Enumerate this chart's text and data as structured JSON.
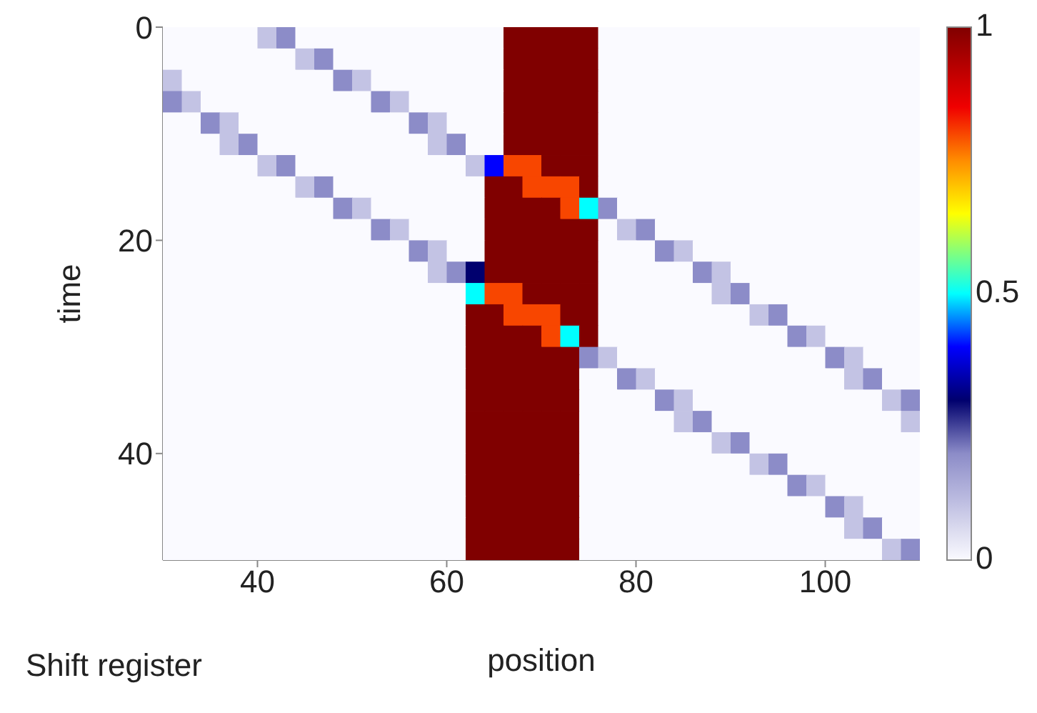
{
  "chart_data": {
    "type": "heatmap",
    "xlabel": "position",
    "ylabel": "time",
    "annotations": [
      "Shift register"
    ],
    "x": [
      31,
      33,
      35,
      37,
      39,
      41,
      43,
      45,
      47,
      49,
      51,
      53,
      55,
      57,
      59,
      61,
      63,
      65,
      67,
      69,
      71,
      73,
      75,
      77,
      79,
      81,
      83,
      85,
      87,
      89,
      91,
      93,
      95,
      97,
      99,
      101,
      103,
      105,
      107,
      109
    ],
    "xlim": [
      30,
      110
    ],
    "xticks": [
      40,
      60,
      80,
      100
    ],
    "ylim": [
      50,
      0
    ],
    "yticks": [
      0,
      20,
      40
    ],
    "clim": [
      0,
      1
    ],
    "cticks": [
      0,
      0.5,
      1
    ],
    "cells": [
      [
        0,
        0,
        0,
        0,
        0,
        0.1,
        0.2,
        0,
        0,
        0,
        0,
        0,
        0,
        0,
        0,
        0,
        0,
        0,
        1,
        1,
        1,
        1,
        1,
        0,
        0,
        0,
        0,
        0,
        0,
        0,
        0,
        0,
        0,
        0,
        0,
        0,
        0,
        0,
        0,
        0
      ],
      [
        0,
        0,
        0,
        0,
        0,
        0,
        0,
        0.1,
        0.2,
        0,
        0,
        0,
        0,
        0,
        0,
        0,
        0,
        0,
        1,
        1,
        1,
        1,
        1,
        0,
        0,
        0,
        0,
        0,
        0,
        0,
        0,
        0,
        0,
        0,
        0,
        0,
        0,
        0,
        0,
        0
      ],
      [
        0.1,
        0,
        0,
        0,
        0,
        0,
        0,
        0,
        0,
        0.2,
        0.1,
        0,
        0,
        0,
        0,
        0,
        0,
        0,
        1,
        1,
        1,
        1,
        1,
        0,
        0,
        0,
        0,
        0,
        0,
        0,
        0,
        0,
        0,
        0,
        0,
        0,
        0,
        0,
        0,
        0
      ],
      [
        0.2,
        0.1,
        0,
        0,
        0,
        0,
        0,
        0,
        0,
        0,
        0,
        0.2,
        0.1,
        0,
        0,
        0,
        0,
        0,
        1,
        1,
        1,
        1,
        1,
        0,
        0,
        0,
        0,
        0,
        0,
        0,
        0,
        0,
        0,
        0,
        0,
        0,
        0,
        0,
        0,
        0
      ],
      [
        0,
        0,
        0.2,
        0.1,
        0,
        0,
        0,
        0,
        0,
        0,
        0,
        0,
        0,
        0.2,
        0.1,
        0,
        0,
        0,
        1,
        1,
        1,
        1,
        1,
        0,
        0,
        0,
        0,
        0,
        0,
        0,
        0,
        0,
        0,
        0,
        0,
        0,
        0,
        0,
        0,
        0
      ],
      [
        0,
        0,
        0,
        0.1,
        0.2,
        0,
        0,
        0,
        0,
        0,
        0,
        0,
        0,
        0,
        0.1,
        0.2,
        0,
        0,
        1,
        1,
        1,
        1,
        1,
        0,
        0,
        0,
        0,
        0,
        0,
        0,
        0,
        0,
        0,
        0,
        0,
        0,
        0,
        0,
        0,
        0
      ],
      [
        0,
        0,
        0,
        0,
        0,
        0.1,
        0.2,
        0,
        0,
        0,
        0,
        0,
        0,
        0,
        0,
        0,
        0.1,
        0.4,
        0.8,
        0.8,
        1,
        1,
        1,
        0,
        0,
        0,
        0,
        0,
        0,
        0,
        0,
        0,
        0,
        0,
        0,
        0,
        0,
        0,
        0,
        0
      ],
      [
        0,
        0,
        0,
        0,
        0,
        0,
        0,
        0.1,
        0.2,
        0,
        0,
        0,
        0,
        0,
        0,
        0,
        0,
        1,
        1,
        0.8,
        0.8,
        0.8,
        1,
        0,
        0,
        0,
        0,
        0,
        0,
        0,
        0,
        0,
        0,
        0,
        0,
        0,
        0,
        0,
        0,
        0
      ],
      [
        0,
        0,
        0,
        0,
        0,
        0,
        0,
        0,
        0,
        0.2,
        0.1,
        0,
        0,
        0,
        0,
        0,
        0,
        1,
        1,
        1,
        1,
        0.8,
        0.5,
        0.2,
        0,
        0,
        0,
        0,
        0,
        0,
        0,
        0,
        0,
        0,
        0,
        0,
        0,
        0,
        0,
        0
      ],
      [
        0,
        0,
        0,
        0,
        0,
        0,
        0,
        0,
        0,
        0,
        0,
        0.2,
        0.1,
        0,
        0,
        0,
        0,
        1,
        1,
        1,
        1,
        1,
        1,
        0,
        0.1,
        0.2,
        0,
        0,
        0,
        0,
        0,
        0,
        0,
        0,
        0,
        0,
        0,
        0,
        0,
        0
      ],
      [
        0,
        0,
        0,
        0,
        0,
        0,
        0,
        0,
        0,
        0,
        0,
        0,
        0,
        0.2,
        0.1,
        0,
        0,
        1,
        1,
        1,
        1,
        1,
        1,
        0,
        0,
        0,
        0.2,
        0.1,
        0,
        0,
        0,
        0,
        0,
        0,
        0,
        0,
        0,
        0,
        0,
        0
      ],
      [
        0,
        0,
        0,
        0,
        0,
        0,
        0,
        0,
        0,
        0,
        0,
        0,
        0,
        0,
        0.1,
        0.2,
        0.3,
        1,
        1,
        1,
        1,
        1,
        1,
        0,
        0,
        0,
        0,
        0,
        0.2,
        0.1,
        0,
        0,
        0,
        0,
        0,
        0,
        0,
        0,
        0,
        0
      ],
      [
        0,
        0,
        0,
        0,
        0,
        0,
        0,
        0,
        0,
        0,
        0,
        0,
        0,
        0,
        0,
        0,
        0.5,
        0.8,
        0.8,
        1,
        1,
        1,
        1,
        0,
        0,
        0,
        0,
        0,
        0,
        0.1,
        0.2,
        0,
        0,
        0,
        0,
        0,
        0,
        0,
        0,
        0
      ],
      [
        0,
        0,
        0,
        0,
        0,
        0,
        0,
        0,
        0,
        0,
        0,
        0,
        0,
        0,
        0,
        0,
        1,
        1,
        0.8,
        0.8,
        0.8,
        1,
        1,
        0,
        0,
        0,
        0,
        0,
        0,
        0,
        0,
        0.1,
        0.2,
        0,
        0,
        0,
        0,
        0,
        0,
        0
      ],
      [
        0,
        0,
        0,
        0,
        0,
        0,
        0,
        0,
        0,
        0,
        0,
        0,
        0,
        0,
        0,
        0,
        1,
        1,
        1,
        1,
        0.8,
        0.5,
        1,
        0,
        0,
        0,
        0,
        0,
        0,
        0,
        0,
        0,
        0,
        0.2,
        0.1,
        0,
        0,
        0,
        0,
        0
      ],
      [
        0,
        0,
        0,
        0,
        0,
        0,
        0,
        0,
        0,
        0,
        0,
        0,
        0,
        0,
        0,
        0,
        1,
        1,
        1,
        1,
        1,
        1,
        0.2,
        0.1,
        0,
        0,
        0,
        0,
        0,
        0,
        0,
        0,
        0,
        0,
        0,
        0.2,
        0.1,
        0,
        0,
        0
      ],
      [
        0,
        0,
        0,
        0,
        0,
        0,
        0,
        0,
        0,
        0,
        0,
        0,
        0,
        0,
        0,
        0,
        1,
        1,
        1,
        1,
        1,
        1,
        0,
        0,
        0.2,
        0.1,
        0,
        0,
        0,
        0,
        0,
        0,
        0,
        0,
        0,
        0,
        0.1,
        0.2,
        0,
        0
      ],
      [
        0,
        0,
        0,
        0,
        0,
        0,
        0,
        0,
        0,
        0,
        0,
        0,
        0,
        0,
        0,
        0,
        1,
        1,
        1,
        1,
        1,
        1,
        0,
        0,
        0,
        0,
        0.2,
        0.1,
        0,
        0,
        0,
        0,
        0,
        0,
        0,
        0,
        0,
        0,
        0.1,
        0.2
      ],
      [
        0,
        0,
        0,
        0,
        0,
        0,
        0,
        0,
        0,
        0,
        0,
        0,
        0,
        0,
        0,
        0,
        1,
        1,
        1,
        1,
        1,
        1,
        0,
        0,
        0,
        0,
        0,
        0.1,
        0.2,
        0,
        0,
        0,
        0,
        0,
        0,
        0,
        0,
        0,
        0,
        0.1
      ],
      [
        0,
        0,
        0,
        0,
        0,
        0,
        0,
        0,
        0,
        0,
        0,
        0,
        0,
        0,
        0,
        0,
        1,
        1,
        1,
        1,
        1,
        1,
        0,
        0,
        0,
        0,
        0,
        0,
        0,
        0.1,
        0.2,
        0,
        0,
        0,
        0,
        0,
        0,
        0,
        0,
        0
      ],
      [
        0,
        0,
        0,
        0,
        0,
        0,
        0,
        0,
        0,
        0,
        0,
        0,
        0,
        0,
        0,
        0,
        1,
        1,
        1,
        1,
        1,
        1,
        0,
        0,
        0,
        0,
        0,
        0,
        0,
        0,
        0,
        0.1,
        0.2,
        0,
        0,
        0,
        0,
        0,
        0,
        0
      ],
      [
        0,
        0,
        0,
        0,
        0,
        0,
        0,
        0,
        0,
        0,
        0,
        0,
        0,
        0,
        0,
        0,
        1,
        1,
        1,
        1,
        1,
        1,
        0,
        0,
        0,
        0,
        0,
        0,
        0,
        0,
        0,
        0,
        0,
        0.2,
        0.1,
        0,
        0,
        0,
        0,
        0
      ],
      [
        0,
        0,
        0,
        0,
        0,
        0,
        0,
        0,
        0,
        0,
        0,
        0,
        0,
        0,
        0,
        0,
        1,
        1,
        1,
        1,
        1,
        1,
        0,
        0,
        0,
        0,
        0,
        0,
        0,
        0,
        0,
        0,
        0,
        0,
        0,
        0.2,
        0.1,
        0,
        0,
        0
      ],
      [
        0,
        0,
        0,
        0,
        0,
        0,
        0,
        0,
        0,
        0,
        0,
        0,
        0,
        0,
        0,
        0,
        1,
        1,
        1,
        1,
        1,
        1,
        0,
        0,
        0,
        0,
        0,
        0,
        0,
        0,
        0,
        0,
        0,
        0,
        0,
        0,
        0.1,
        0.2,
        0,
        0
      ],
      [
        0,
        0,
        0,
        0,
        0,
        0,
        0,
        0,
        0,
        0,
        0,
        0,
        0,
        0,
        0,
        0,
        1,
        1,
        1,
        1,
        1,
        1,
        0,
        0,
        0,
        0,
        0,
        0,
        0,
        0,
        0,
        0,
        0,
        0,
        0,
        0,
        0,
        0,
        0.1,
        0.2
      ]
    ]
  }
}
